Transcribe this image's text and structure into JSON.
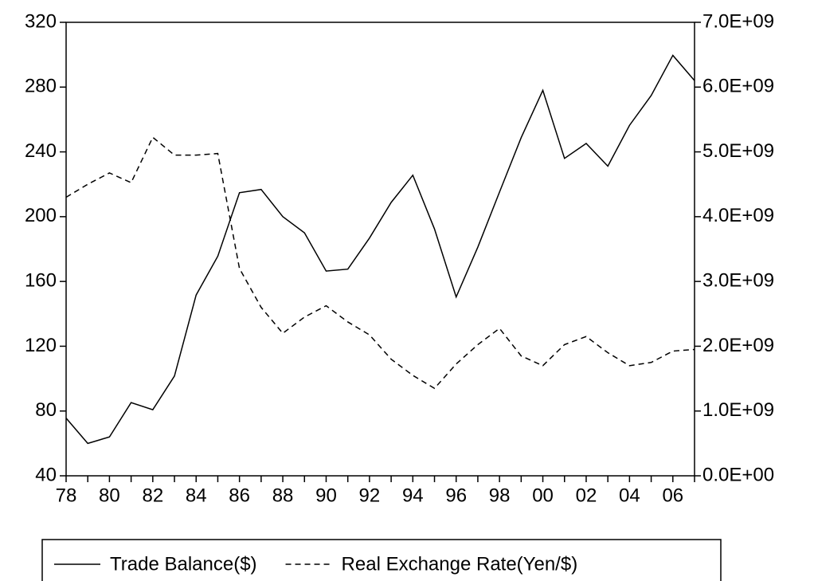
{
  "chart_data": {
    "type": "line",
    "categories": [
      "78",
      null,
      "80",
      null,
      "82",
      null,
      "84",
      null,
      "86",
      null,
      "88",
      null,
      "90",
      null,
      "92",
      null,
      "94",
      null,
      "96",
      null,
      "98",
      null,
      "00",
      null,
      "02",
      null,
      "04",
      null,
      "06",
      null
    ],
    "series": [
      {
        "name": "Trade Balance($)",
        "color": "#000000",
        "style": "solid",
        "axis": "y2",
        "values": [
          890000000,
          500000000,
          600000000,
          1130000000,
          1020000000,
          1540000000,
          2790000000,
          3390000000,
          4370000000,
          4420000000,
          4000000000,
          3750000000,
          3160000000,
          3190000000,
          3670000000,
          4220000000,
          4640000000,
          3810000000,
          2760000000,
          3530000000,
          4380000000,
          5220000000,
          5950000000,
          4900000000,
          5130000000,
          4780000000,
          5410000000,
          5870000000,
          6490000000,
          6100000000
        ]
      },
      {
        "name": "Real Exchange Rate(Yen/$)",
        "color": "#000000",
        "style": "dashed",
        "values": [
          212,
          220,
          227,
          221,
          249,
          238,
          238,
          239,
          168,
          144,
          128,
          138,
          145,
          135,
          127,
          112,
          102,
          94,
          109,
          121,
          131,
          114,
          108,
          121,
          126,
          116,
          108,
          110,
          117,
          118
        ]
      }
    ],
    "ylim": [
      40,
      320
    ],
    "yticks": [
      40,
      80,
      120,
      160,
      200,
      240,
      280,
      320
    ],
    "y2lim": [
      0,
      7000000000
    ],
    "y2ticks": [
      {
        "value": 0,
        "label": "0.0E+00"
      },
      {
        "value": 1000000000,
        "label": "1.0E+09"
      },
      {
        "value": 2000000000,
        "label": "2.0E+09"
      },
      {
        "value": 3000000000,
        "label": "3.0E+09"
      },
      {
        "value": 4000000000,
        "label": "4.0E+09"
      },
      {
        "value": 5000000000,
        "label": "5.0E+09"
      },
      {
        "value": 6000000000,
        "label": "6.0E+09"
      },
      {
        "value": 7000000000,
        "label": "7.0E+09"
      }
    ],
    "grid": false,
    "legend": "bottom"
  }
}
